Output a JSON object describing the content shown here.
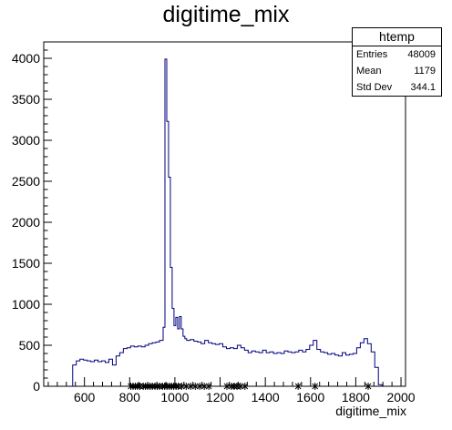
{
  "chart_data": {
    "type": "bar",
    "title": "digitime_mix",
    "xlabel": "digitime_mix",
    "ylabel": "",
    "xlim": [
      420,
      2020
    ],
    "ylim": [
      0,
      4200
    ],
    "x_ticks": [
      600,
      800,
      1000,
      1200,
      1400,
      1600,
      1800,
      2000
    ],
    "y_ticks": [
      0,
      500,
      1000,
      1500,
      2000,
      2500,
      3000,
      3500,
      4000
    ],
    "bin_width": 16,
    "series": [
      {
        "color": "#000080",
        "bins": [
          [
            548,
            260
          ],
          [
            564,
            310
          ],
          [
            580,
            330
          ],
          [
            596,
            320
          ],
          [
            612,
            310
          ],
          [
            628,
            300
          ],
          [
            644,
            320
          ],
          [
            660,
            300
          ],
          [
            676,
            310
          ],
          [
            692,
            290
          ],
          [
            708,
            330
          ],
          [
            724,
            260
          ],
          [
            740,
            370
          ],
          [
            756,
            410
          ],
          [
            772,
            460
          ],
          [
            788,
            470
          ],
          [
            804,
            490
          ],
          [
            820,
            480
          ],
          [
            836,
            490
          ],
          [
            852,
            480
          ],
          [
            868,
            500
          ],
          [
            884,
            520
          ],
          [
            900,
            530
          ],
          [
            916,
            540
          ],
          [
            932,
            560
          ],
          [
            948,
            720
          ],
          [
            956,
            3990
          ],
          [
            964,
            3230
          ],
          [
            972,
            2550
          ],
          [
            980,
            1450
          ],
          [
            988,
            950
          ],
          [
            996,
            740
          ],
          [
            1004,
            840
          ],
          [
            1012,
            700
          ],
          [
            1020,
            850
          ],
          [
            1028,
            700
          ],
          [
            1036,
            610
          ],
          [
            1044,
            580
          ],
          [
            1052,
            560
          ],
          [
            1068,
            570
          ],
          [
            1084,
            550
          ],
          [
            1100,
            540
          ],
          [
            1116,
            520
          ],
          [
            1132,
            560
          ],
          [
            1148,
            530
          ],
          [
            1164,
            520
          ],
          [
            1180,
            510
          ],
          [
            1196,
            520
          ],
          [
            1212,
            480
          ],
          [
            1228,
            460
          ],
          [
            1244,
            470
          ],
          [
            1260,
            460
          ],
          [
            1276,
            500
          ],
          [
            1292,
            470
          ],
          [
            1308,
            440
          ],
          [
            1324,
            410
          ],
          [
            1340,
            430
          ],
          [
            1356,
            420
          ],
          [
            1372,
            410
          ],
          [
            1388,
            440
          ],
          [
            1404,
            410
          ],
          [
            1420,
            420
          ],
          [
            1436,
            400
          ],
          [
            1452,
            410
          ],
          [
            1468,
            400
          ],
          [
            1484,
            430
          ],
          [
            1500,
            420
          ],
          [
            1516,
            410
          ],
          [
            1532,
            420
          ],
          [
            1548,
            440
          ],
          [
            1564,
            420
          ],
          [
            1580,
            450
          ],
          [
            1596,
            500
          ],
          [
            1612,
            560
          ],
          [
            1628,
            450
          ],
          [
            1644,
            420
          ],
          [
            1660,
            410
          ],
          [
            1676,
            390
          ],
          [
            1692,
            400
          ],
          [
            1708,
            380
          ],
          [
            1724,
            370
          ],
          [
            1740,
            410
          ],
          [
            1756,
            380
          ],
          [
            1772,
            390
          ],
          [
            1788,
            400
          ],
          [
            1804,
            470
          ],
          [
            1820,
            530
          ],
          [
            1836,
            580
          ],
          [
            1852,
            520
          ],
          [
            1868,
            420
          ],
          [
            1884,
            230
          ],
          [
            1900,
            20
          ]
        ]
      }
    ],
    "error_markers_x": [
      805,
      815,
      825,
      835,
      845,
      860,
      870,
      880,
      890,
      900,
      912,
      922,
      932,
      945,
      955,
      965,
      975,
      985,
      995,
      1005,
      1015,
      1030,
      1050,
      1070,
      1090,
      1110,
      1130,
      1150,
      1230,
      1250,
      1262,
      1275,
      1290,
      1310,
      1545,
      1620,
      1855
    ],
    "stats_box": {
      "title": "htemp",
      "rows": [
        {
          "key": "Entries",
          "value": "48009"
        },
        {
          "key": "Mean",
          "value": "1179"
        },
        {
          "key": "Std Dev",
          "value": "344.1"
        }
      ]
    },
    "grid": false,
    "legend": "top-right"
  }
}
